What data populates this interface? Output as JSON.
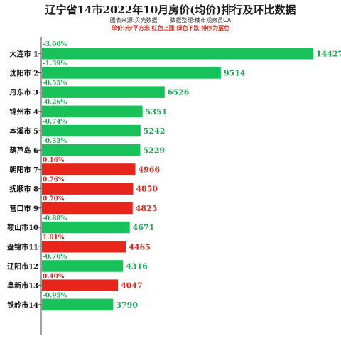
{
  "chart_data": {
    "type": "bar",
    "orientation": "horizontal",
    "title": "辽宁省14市2022年10月房价(均价)排行及环比数据",
    "source": "图表来源:贝壳数据",
    "organizer": "数据整理:楼市观察员CA",
    "note": "单价:元/平方米  红色上涨  绿色下跌  排序为蓝色",
    "categories": [
      "大连市 1",
      "沈阳市 2",
      "丹东市 3",
      "锦州市 4",
      "本溪市 5",
      "葫芦岛 6",
      "朝阳市 7",
      "抚顺市 8",
      "营口市 9",
      "鞍山市10",
      "盘锦市11",
      "辽阳市12",
      "阜新市13",
      "铁岭市14"
    ],
    "values": [
      14427,
      9514,
      6526,
      5351,
      5242,
      5229,
      4966,
      4850,
      4825,
      4671,
      4465,
      4316,
      4047,
      3790
    ],
    "changes": [
      "-3.00%",
      "-1.39%",
      "-0.55%",
      "-0.26%",
      "-0.74%",
      "-0.33%",
      "0.16%",
      "0.76%",
      "0.70%",
      "-0.88%",
      "1.01%",
      "-0.70%",
      "0.40%",
      "-0.95%"
    ],
    "xlim": [
      0,
      14427
    ],
    "grid": false,
    "legend": "none"
  },
  "colors": {
    "up": "#e8251a",
    "down": "#19c15a",
    "up_text": "#d12a1e",
    "down_text": "#16a84e"
  }
}
